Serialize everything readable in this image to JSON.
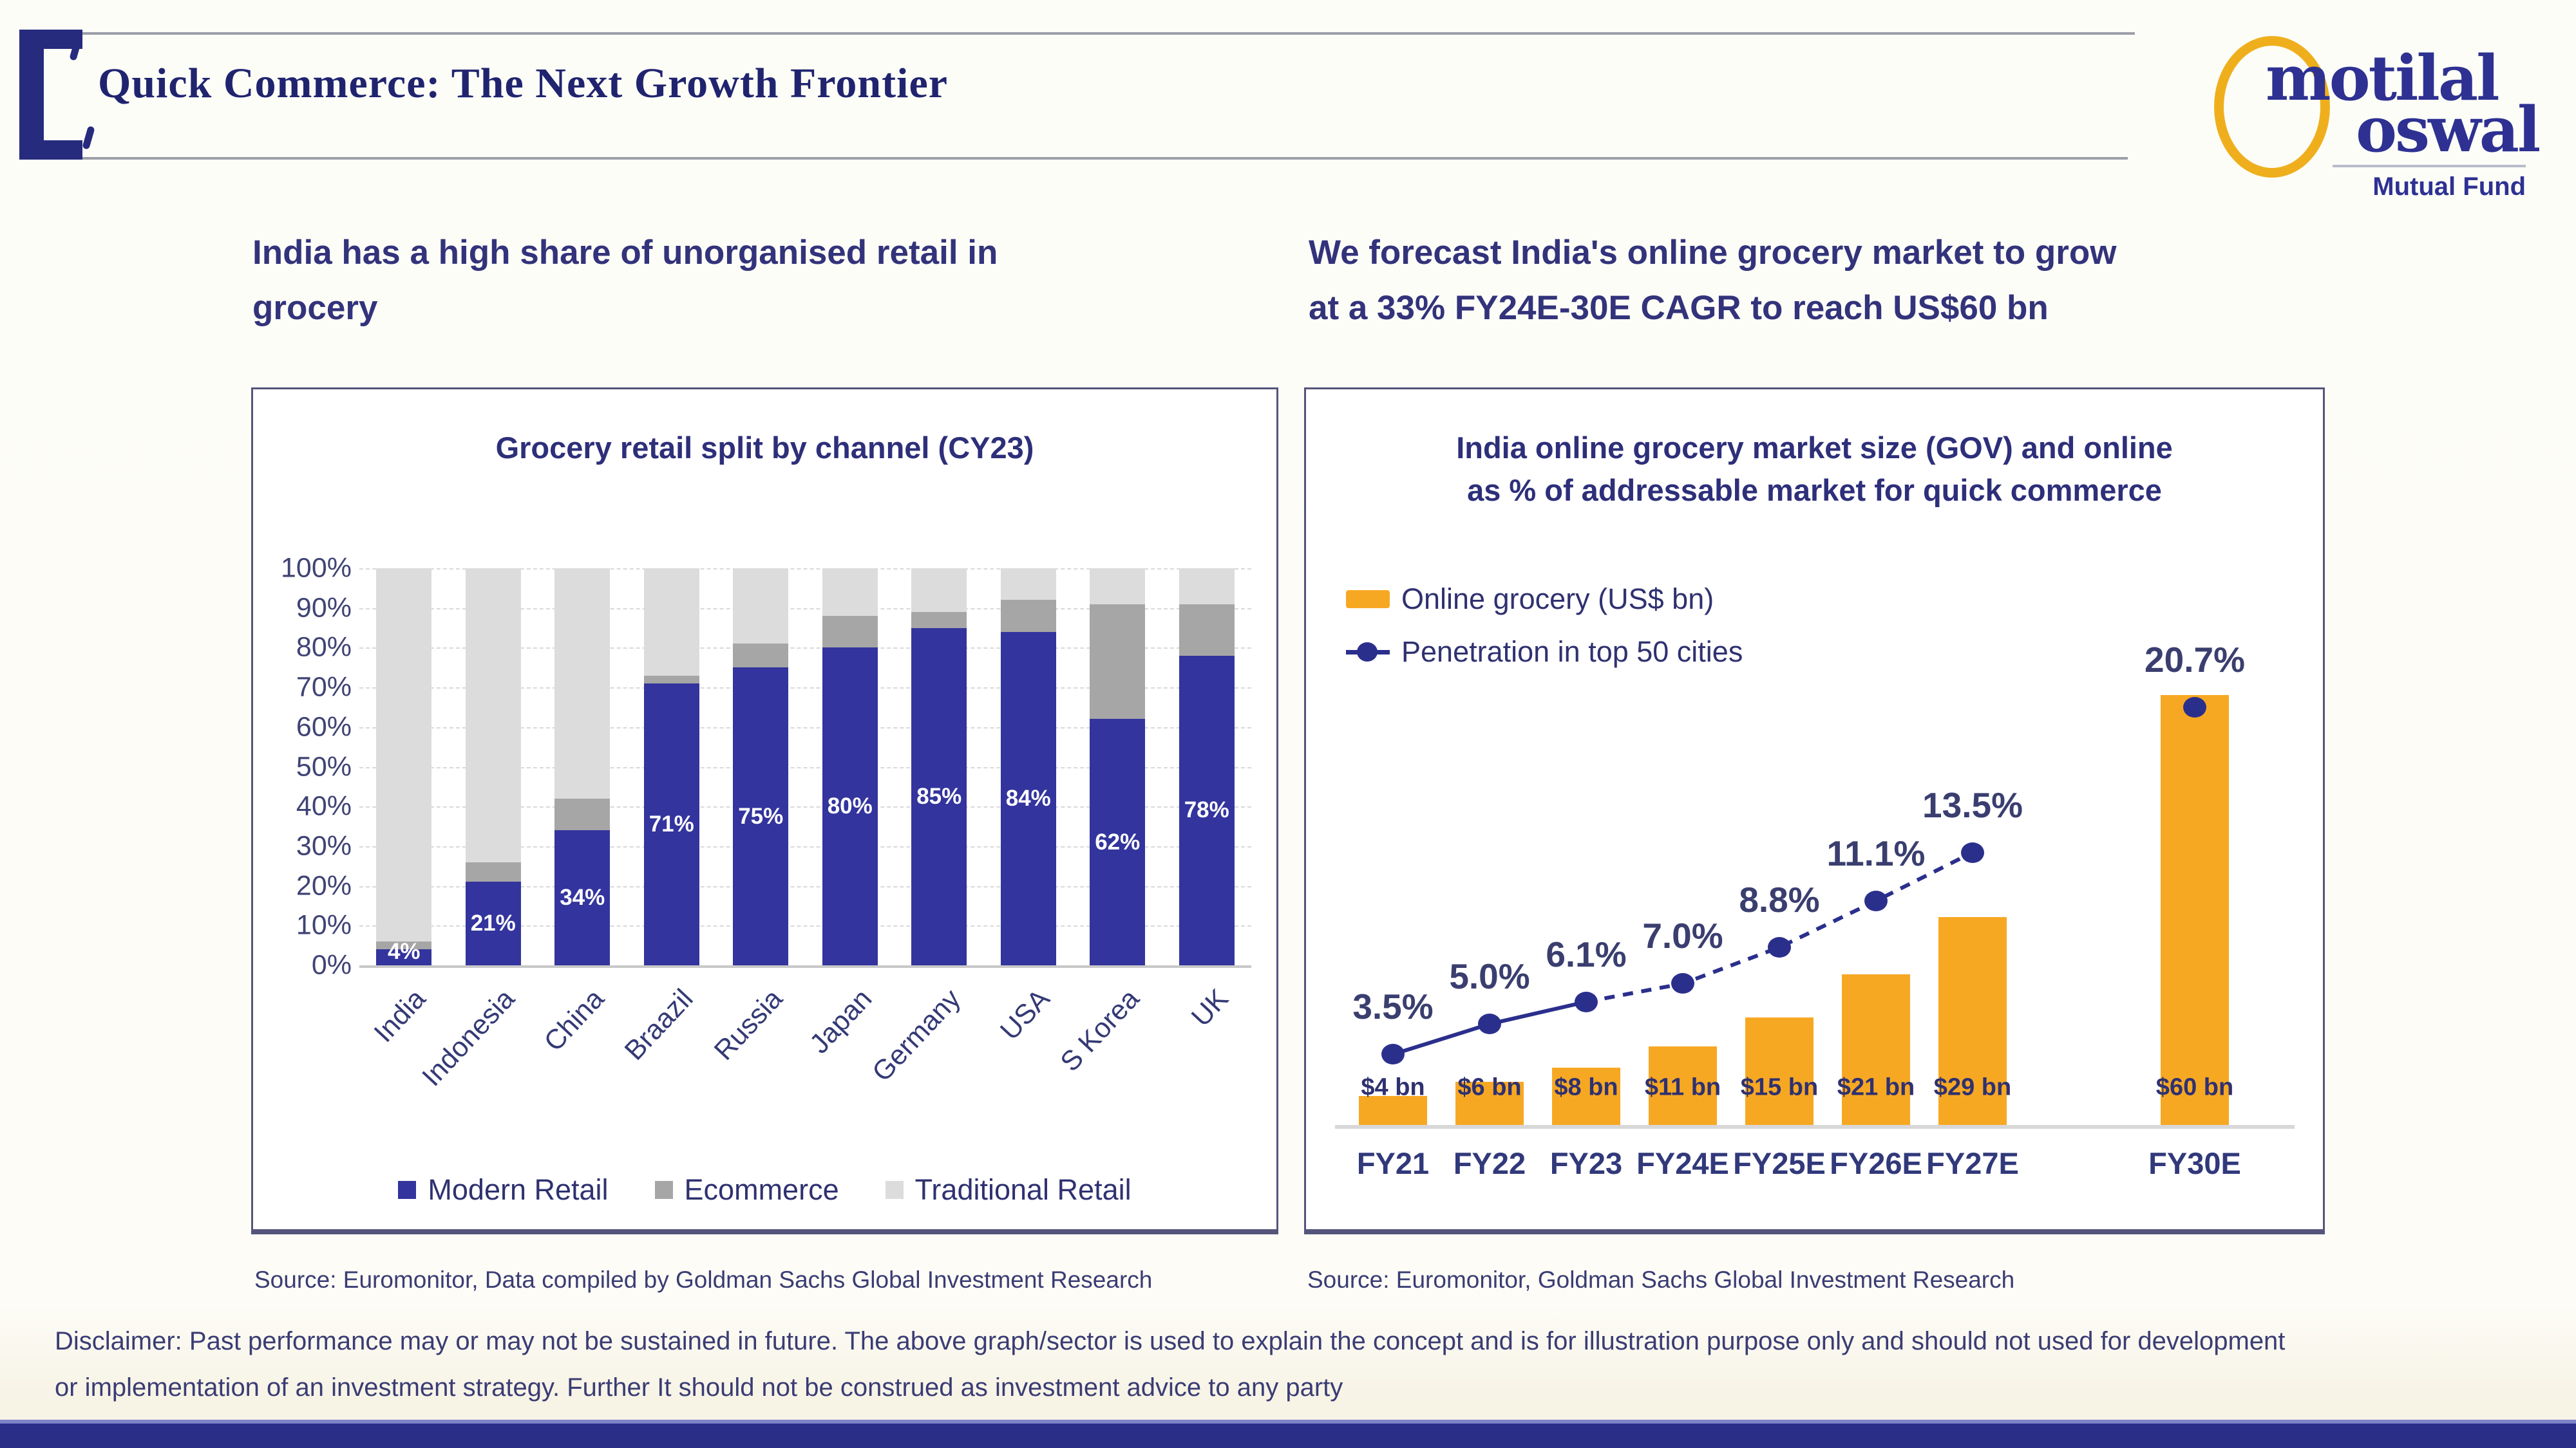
{
  "header": {
    "title": "Quick Commerce: The Next Growth Frontier"
  },
  "logo": {
    "word1": "motilal",
    "word2": "oswal",
    "tagline": "Mutual Fund"
  },
  "left_section": {
    "heading_lines": [
      "India has a high share of unorganised retail in",
      "grocery"
    ],
    "source": "Source: Euromonitor, Data compiled by Goldman Sachs Global Investment Research"
  },
  "right_section": {
    "heading_lines": [
      "We forecast India's online grocery market to grow",
      "at a 33% FY24E-30E CAGR to reach US$60 bn"
    ],
    "source": "Source: Euromonitor, Goldman Sachs Global Investment Research"
  },
  "disclaimer_lines": [
    "Disclaimer: Past performance may or may not be sustained in future. The above graph/sector is used to explain the concept and is for illustration purpose only and should not used for development",
    "or implementation of an investment strategy. Further It should not be construed as investment advice to any party"
  ],
  "chart_data": [
    {
      "type": "bar",
      "stacked": true,
      "title": "Grocery retail split by channel (CY23)",
      "categories": [
        "India",
        "Indonesia",
        "China",
        "Braazil",
        "Russia",
        "Japan",
        "Germany",
        "USA",
        "S Korea",
        "UK"
      ],
      "series": [
        {
          "name": "Modern Retail",
          "color": "#33349D",
          "values": [
            4,
            21,
            34,
            71,
            75,
            80,
            85,
            84,
            62,
            78
          ]
        },
        {
          "name": "Ecommerce",
          "color": "#A6A6A6",
          "values": [
            2,
            5,
            8,
            2,
            6,
            8,
            4,
            8,
            29,
            13
          ]
        },
        {
          "name": "Traditional Retail",
          "color": "#DCDCDC",
          "values": [
            94,
            74,
            58,
            27,
            19,
            12,
            11,
            8,
            9,
            9
          ]
        }
      ],
      "bar_labels": [
        "4%",
        "21%",
        "34%",
        "71%",
        "75%",
        "80%",
        "85%",
        "84%",
        "62%",
        "78%"
      ],
      "y_ticks": [
        "100%",
        "90%",
        "80%",
        "70%",
        "60%",
        "50%",
        "40%",
        "30%",
        "20%",
        "10%",
        "0%"
      ],
      "ylim": [
        0,
        100
      ],
      "grid": "dashed-horizontal",
      "legend_position": "bottom"
    },
    {
      "type": "bar+line",
      "title_lines": [
        "India online grocery market size (GOV) and online",
        "as % of addressable market for quick commerce"
      ],
      "categories": [
        "FY21",
        "FY22",
        "FY23",
        "FY24E",
        "FY25E",
        "FY26E",
        "FY27E",
        "FY30E"
      ],
      "bars": {
        "name": "Online grocery (US$ bn)",
        "color": "#F7A823",
        "values": [
          4,
          6,
          8,
          11,
          15,
          21,
          29,
          60
        ],
        "labels": [
          "$4 bn",
          "$6 bn",
          "$8 bn",
          "$11 bn",
          "$15 bn",
          "$21 bn",
          "$29 bn",
          "$60 bn"
        ]
      },
      "line": {
        "name": "Penetration in top 50 cities",
        "color": "#2B2F8C",
        "values_pct": [
          3.5,
          5.0,
          6.1,
          7.0,
          8.8,
          11.1,
          13.5,
          20.7
        ],
        "labels": [
          "3.5%",
          "5.0%",
          "6.1%",
          "7.0%",
          "8.8%",
          "11.1%",
          "13.5%",
          "20.7%"
        ],
        "solid_until_index": 2,
        "last_point_disconnected": true
      },
      "bar_axis_max": 62,
      "pct_axis_max": 22,
      "gap_before_last_category": true,
      "legend_position": "top-left"
    }
  ]
}
